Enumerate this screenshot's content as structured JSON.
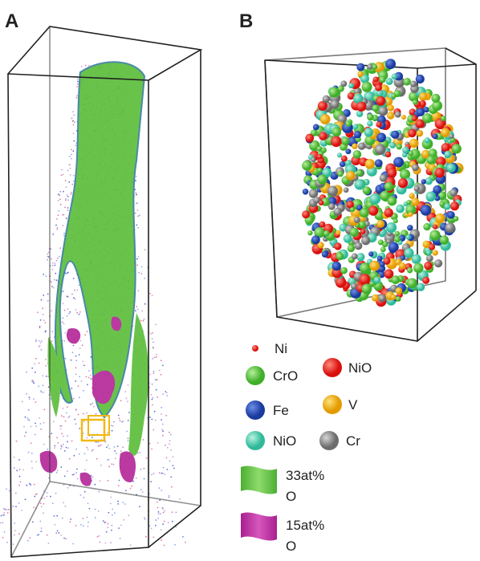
{
  "panels": [
    {
      "label": "A"
    },
    {
      "label": "B"
    }
  ],
  "legend": {
    "atoms": [
      {
        "label": "Ni"
      },
      {
        "label": "CrO"
      },
      {
        "label": "NiO"
      },
      {
        "label": "Fe"
      },
      {
        "label": "V"
      },
      {
        "label": "NiO"
      },
      {
        "label": "Cr"
      }
    ],
    "surfaces": [
      {
        "lines": [
          "33at%",
          "O"
        ]
      },
      {
        "lines": [
          "15at%",
          "O"
        ]
      }
    ]
  }
}
